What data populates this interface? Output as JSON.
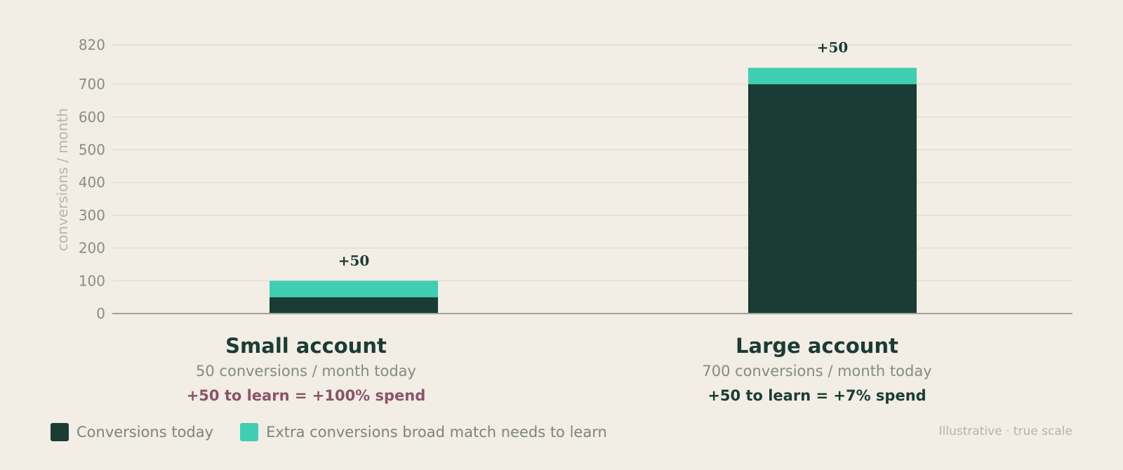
{
  "chart_data": {
    "type": "bar",
    "stacked": true,
    "categories": [
      "Small account",
      "Large account"
    ],
    "category_subtitles": [
      "50 conversions / month today",
      "700 conversions / month today"
    ],
    "category_notes": [
      "+50 to learn = +100% spend",
      "+50 to learn = +7% spend"
    ],
    "category_note_colors": [
      "#8a5468",
      "#1a3c34"
    ],
    "series": [
      {
        "name": "Conversions today",
        "values": [
          50,
          700
        ],
        "color": "#1a3c34"
      },
      {
        "name": "Extra conversions broad match needs to learn",
        "values": [
          50,
          50
        ],
        "color": "#3ecfb2"
      }
    ],
    "data_labels": [
      "+50",
      "+50"
    ],
    "ylabel": "conversions / month",
    "ylim": [
      0,
      820
    ],
    "yticks": [
      0,
      100,
      200,
      300,
      400,
      500,
      600,
      700,
      820
    ],
    "grid": true,
    "legend_position": "bottom-left",
    "footnote": "Illustrative · true scale"
  }
}
